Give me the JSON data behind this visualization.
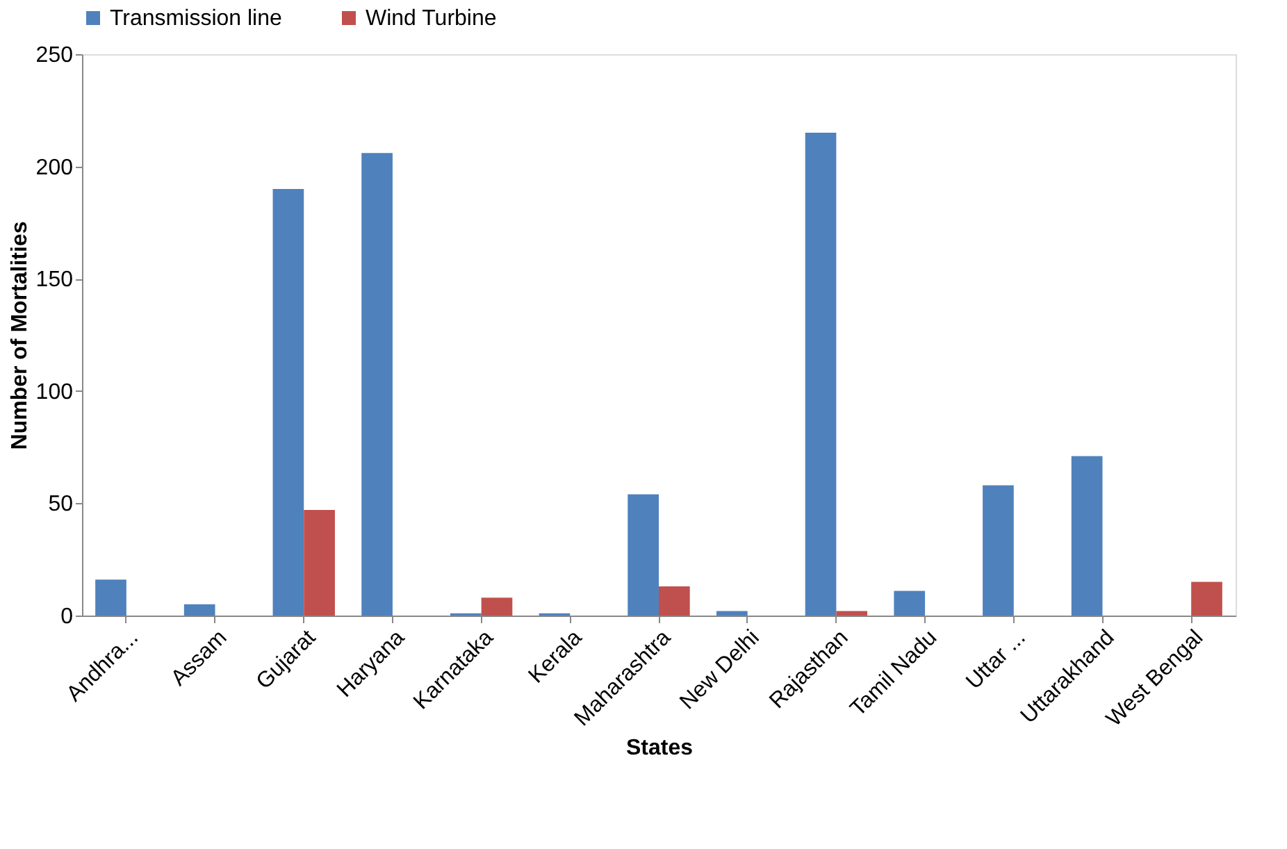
{
  "chart_data": {
    "type": "bar",
    "xlabel": "States",
    "ylabel": "Number of Mortalities",
    "categories": [
      "Andhra...",
      "Assam",
      "Gujarat",
      "Haryana",
      "Karnataka",
      "Kerala",
      "Maharashtra",
      "New Delhi",
      "Rajasthan",
      "Tamil Nadu",
      "Uttar ...",
      "Uttarakhand",
      "West Bengal"
    ],
    "series": [
      {
        "name": "Transmission line",
        "color": "#4f81bd",
        "values": [
          16,
          5,
          190,
          206,
          1,
          1,
          54,
          2,
          215,
          11,
          58,
          71,
          null
        ]
      },
      {
        "name": "Wind Turbine",
        "color": "#c0504d",
        "values": [
          null,
          null,
          47,
          null,
          8,
          null,
          13,
          null,
          2,
          null,
          null,
          null,
          15
        ]
      }
    ],
    "ylim": [
      0,
      250
    ],
    "yticks": [
      0,
      50,
      100,
      150,
      200,
      250
    ],
    "grid": false,
    "legend": "top"
  }
}
